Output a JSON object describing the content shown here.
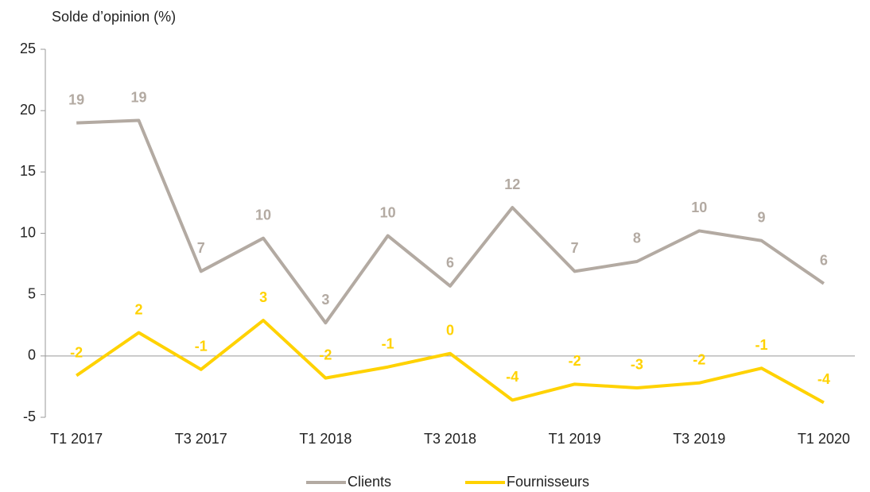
{
  "chart_data": {
    "type": "line",
    "y_label": "Solde d’opinion (%)",
    "categories": [
      "T1 2017",
      null,
      "T3 2017",
      null,
      "T1 2018",
      null,
      "T3 2018",
      null,
      "T1 2019",
      null,
      "T3 2019",
      null,
      "T1 2020"
    ],
    "series": [
      {
        "name": "Clients",
        "color": "#b3aaa2",
        "values": [
          19.0,
          19.2,
          6.9,
          9.6,
          2.7,
          9.8,
          5.7,
          12.1,
          6.9,
          7.7,
          10.2,
          9.4,
          5.9
        ],
        "value_labels": [
          "19",
          "19",
          "7",
          "10",
          "3",
          "10",
          "6",
          "12",
          "7",
          "8",
          "10",
          "9",
          "6"
        ]
      },
      {
        "name": "Fournisseurs",
        "color": "#ffd200",
        "values": [
          -1.6,
          1.9,
          -1.1,
          2.9,
          -1.8,
          -0.9,
          0.2,
          -3.6,
          -2.3,
          -2.6,
          -2.2,
          -1.0,
          -3.8
        ],
        "value_labels": [
          "-2",
          "2",
          "-1",
          "3",
          "-2",
          "-1",
          "0",
          "-4",
          "-2",
          "-3",
          "-2",
          "-1",
          "-4"
        ]
      }
    ],
    "ylim": [
      -5,
      25
    ],
    "yticks": [
      -5,
      0,
      5,
      10,
      15,
      20,
      25
    ],
    "grid": false,
    "legend": "bottom"
  }
}
